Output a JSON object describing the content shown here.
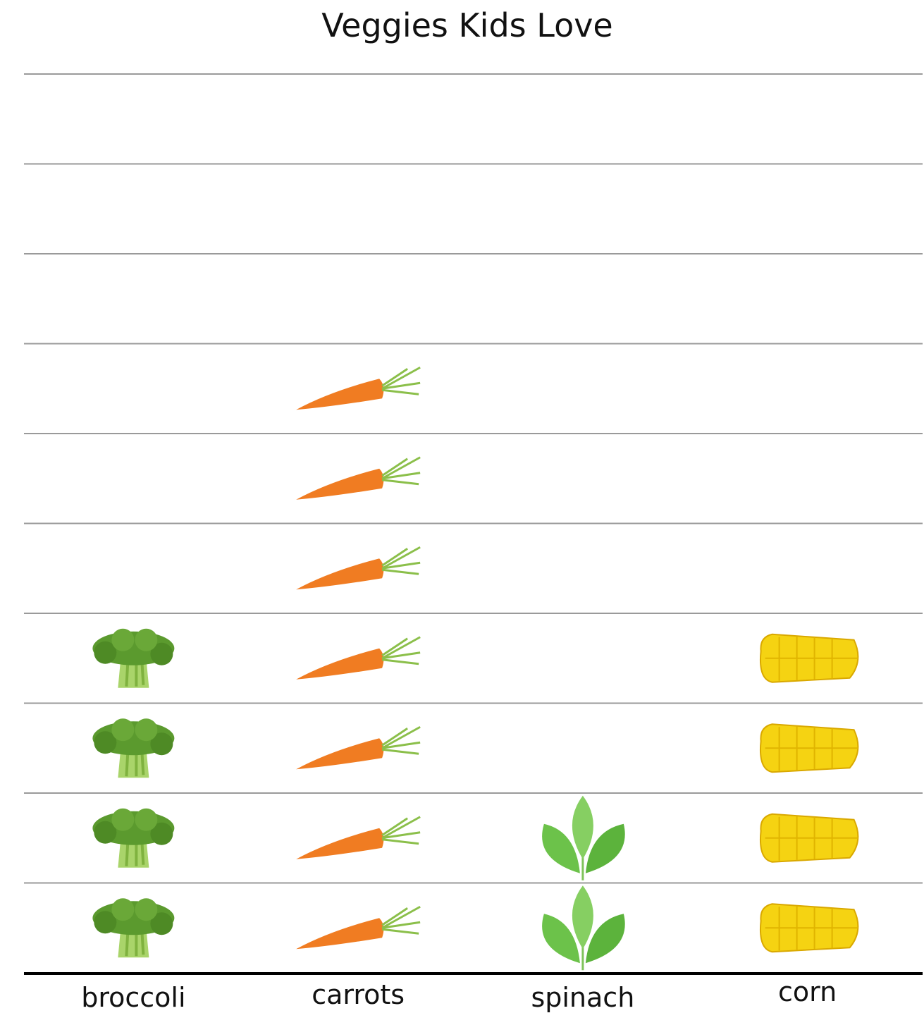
{
  "chart_data": {
    "type": "bar",
    "marker": "picture",
    "title": "Veggies Kids Love",
    "xlabel": "",
    "ylabel": "",
    "categories": [
      "broccoli",
      "carrots",
      "spinach",
      "corn"
    ],
    "icons": [
      "broccoli-icon",
      "carrot-icon",
      "spinach-icon",
      "corn-icon"
    ],
    "values": [
      4,
      7,
      2,
      4
    ],
    "ylim": [
      0,
      10
    ],
    "grid": true,
    "colors": {
      "broccoli": "#5b9a2e",
      "carrots": "#f07c22",
      "spinach": "#6cc24a",
      "corn": "#f5d312",
      "gridline": "#9a9a9a",
      "axis": "#000000"
    }
  }
}
